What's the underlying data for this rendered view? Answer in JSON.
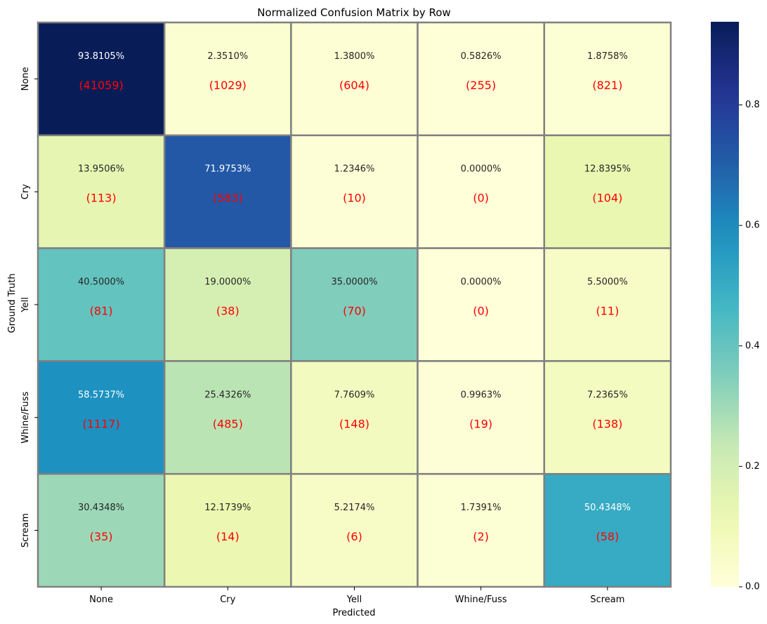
{
  "chart_data": {
    "type": "heatmap",
    "title": "Normalized Confusion Matrix by Row",
    "xlabel": "Predicted",
    "ylabel": "Ground Truth",
    "x_categories": [
      "None",
      "Cry",
      "Yell",
      "Whine/Fuss",
      "Scream"
    ],
    "y_categories": [
      "None",
      "Cry",
      "Yell",
      "Whine/Fuss",
      "Scream"
    ],
    "values": [
      [
        0.938105,
        0.02351,
        0.0138,
        0.005826,
        0.018758
      ],
      [
        0.139506,
        0.719753,
        0.012346,
        0.0,
        0.128395
      ],
      [
        0.405,
        0.19,
        0.35,
        0.0,
        0.055
      ],
      [
        0.585737,
        0.254326,
        0.077609,
        0.009963,
        0.072365
      ],
      [
        0.304348,
        0.121739,
        0.052174,
        0.017391,
        0.504348
      ]
    ],
    "percent_labels": [
      [
        "93.8105%",
        "2.3510%",
        "1.3800%",
        "0.5826%",
        "1.8758%"
      ],
      [
        "13.9506%",
        "71.9753%",
        "1.2346%",
        "0.0000%",
        "12.8395%"
      ],
      [
        "40.5000%",
        "19.0000%",
        "35.0000%",
        "0.0000%",
        "5.5000%"
      ],
      [
        "58.5737%",
        "25.4326%",
        "7.7609%",
        "0.9963%",
        "7.2365%"
      ],
      [
        "30.4348%",
        "12.1739%",
        "5.2174%",
        "1.7391%",
        "50.4348%"
      ]
    ],
    "count_labels": [
      [
        "(41059)",
        "(1029)",
        "(604)",
        "(255)",
        "(821)"
      ],
      [
        "(113)",
        "(583)",
        "(10)",
        "(0)",
        "(104)"
      ],
      [
        "(81)",
        "(38)",
        "(70)",
        "(0)",
        "(11)"
      ],
      [
        "(1117)",
        "(485)",
        "(148)",
        "(19)",
        "(138)"
      ],
      [
        "(35)",
        "(14)",
        "(6)",
        "(2)",
        "(58)"
      ]
    ],
    "colorbar": {
      "colormap": "YlGnBu",
      "vmin": 0.0,
      "vmax": 0.938105,
      "ticks": [
        0.0,
        0.2,
        0.4,
        0.6,
        0.8
      ],
      "tick_labels": [
        "0.0",
        "0.2",
        "0.4",
        "0.6",
        "0.8"
      ]
    },
    "colors": {
      "count_text": "#ff0000",
      "cell_border": "#808080",
      "light_text": "#ffffff",
      "dark_text": "#262626"
    }
  }
}
